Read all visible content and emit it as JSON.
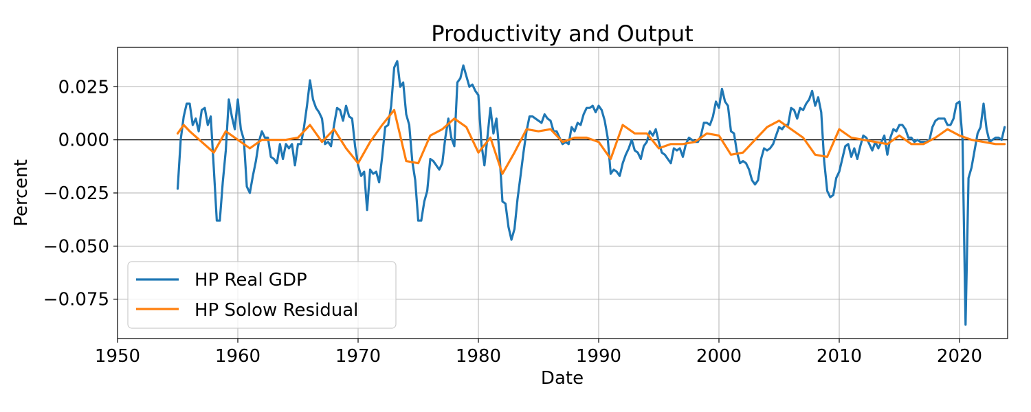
{
  "chart_data": {
    "type": "line",
    "title": "Productivity and Output",
    "xlabel": "Date",
    "ylabel": "Percent",
    "xlim": [
      1950,
      2024
    ],
    "ylim": [
      -0.0935,
      0.0435
    ],
    "x_ticks": [
      1950,
      1960,
      1970,
      1980,
      1990,
      2000,
      2010,
      2020
    ],
    "x_tick_labels": [
      "1950",
      "1960",
      "1970",
      "1980",
      "1990",
      "2000",
      "2010",
      "2020"
    ],
    "y_ticks": [
      0.025,
      0.0,
      -0.025,
      -0.05,
      -0.075
    ],
    "y_tick_labels": [
      "0.025",
      "0.000",
      "−0.025",
      "−0.050",
      "−0.075"
    ],
    "grid": true,
    "zero_line": true,
    "legend_position": "lower-left",
    "colors": {
      "hp_real_gdp": "#1f77b4",
      "hp_solow_residual": "#ff7f0e",
      "grid": "#b0b0b0"
    },
    "series": [
      {
        "name": "HP Real GDP",
        "color": "#1f77b4",
        "x": [
          1955.0,
          1955.25,
          1955.5,
          1955.75,
          1956.0,
          1956.25,
          1956.5,
          1956.75,
          1957.0,
          1957.25,
          1957.5,
          1957.75,
          1958.0,
          1958.25,
          1958.5,
          1958.75,
          1959.0,
          1959.25,
          1959.5,
          1959.75,
          1960.0,
          1960.25,
          1960.5,
          1960.75,
          1961.0,
          1961.25,
          1961.5,
          1961.75,
          1962.0,
          1962.25,
          1962.5,
          1962.75,
          1963.0,
          1963.25,
          1963.5,
          1963.75,
          1964.0,
          1964.25,
          1964.5,
          1964.75,
          1965.0,
          1965.25,
          1965.5,
          1965.75,
          1966.0,
          1966.25,
          1966.5,
          1966.75,
          1967.0,
          1967.25,
          1967.5,
          1967.75,
          1968.0,
          1968.25,
          1968.5,
          1968.75,
          1969.0,
          1969.25,
          1969.5,
          1969.75,
          1970.0,
          1970.25,
          1970.5,
          1970.75,
          1971.0,
          1971.25,
          1971.5,
          1971.75,
          1972.0,
          1972.25,
          1972.5,
          1972.75,
          1973.0,
          1973.25,
          1973.5,
          1973.75,
          1974.0,
          1974.25,
          1974.5,
          1974.75,
          1975.0,
          1975.25,
          1975.5,
          1975.75,
          1976.0,
          1976.25,
          1976.5,
          1976.75,
          1977.0,
          1977.25,
          1977.5,
          1977.75,
          1978.0,
          1978.25,
          1978.5,
          1978.75,
          1979.0,
          1979.25,
          1979.5,
          1979.75,
          1980.0,
          1980.25,
          1980.5,
          1980.75,
          1981.0,
          1981.25,
          1981.5,
          1981.75,
          1982.0,
          1982.25,
          1982.5,
          1982.75,
          1983.0,
          1983.25,
          1983.5,
          1983.75,
          1984.0,
          1984.25,
          1984.5,
          1984.75,
          1985.0,
          1985.25,
          1985.5,
          1985.75,
          1986.0,
          1986.25,
          1986.5,
          1986.75,
          1987.0,
          1987.25,
          1987.5,
          1987.75,
          1988.0,
          1988.25,
          1988.5,
          1988.75,
          1989.0,
          1989.25,
          1989.5,
          1989.75,
          1990.0,
          1990.25,
          1990.5,
          1990.75,
          1991.0,
          1991.25,
          1991.5,
          1991.75,
          1992.0,
          1992.25,
          1992.5,
          1992.75,
          1993.0,
          1993.25,
          1993.5,
          1993.75,
          1994.0,
          1994.25,
          1994.5,
          1994.75,
          1995.0,
          1995.25,
          1995.5,
          1995.75,
          1996.0,
          1996.25,
          1996.5,
          1996.75,
          1997.0,
          1997.25,
          1997.5,
          1997.75,
          1998.0,
          1998.25,
          1998.5,
          1998.75,
          1999.0,
          1999.25,
          1999.5,
          1999.75,
          2000.0,
          2000.25,
          2000.5,
          2000.75,
          2001.0,
          2001.25,
          2001.5,
          2001.75,
          2002.0,
          2002.25,
          2002.5,
          2002.75,
          2003.0,
          2003.25,
          2003.5,
          2003.75,
          2004.0,
          2004.25,
          2004.5,
          2004.75,
          2005.0,
          2005.25,
          2005.5,
          2005.75,
          2006.0,
          2006.25,
          2006.5,
          2006.75,
          2007.0,
          2007.25,
          2007.5,
          2007.75,
          2008.0,
          2008.25,
          2008.5,
          2008.75,
          2009.0,
          2009.25,
          2009.5,
          2009.75,
          2010.0,
          2010.25,
          2010.5,
          2010.75,
          2011.0,
          2011.25,
          2011.5,
          2011.75,
          2012.0,
          2012.25,
          2012.5,
          2012.75,
          2013.0,
          2013.25,
          2013.5,
          2013.75,
          2014.0,
          2014.25,
          2014.5,
          2014.75,
          2015.0,
          2015.25,
          2015.5,
          2015.75,
          2016.0,
          2016.25,
          2016.5,
          2016.75,
          2017.0,
          2017.25,
          2017.5,
          2017.75,
          2018.0,
          2018.25,
          2018.5,
          2018.75,
          2019.0,
          2019.25,
          2019.5,
          2019.75,
          2020.0,
          2020.25,
          2020.5,
          2020.75,
          2021.0,
          2021.25,
          2021.5,
          2021.75,
          2022.0,
          2022.25,
          2022.5,
          2022.75,
          2023.0,
          2023.25,
          2023.5,
          2023.75
        ],
        "y": [
          -0.023,
          0.0,
          0.011,
          0.017,
          0.017,
          0.007,
          0.01,
          0.004,
          0.014,
          0.015,
          0.007,
          0.011,
          -0.013,
          -0.038,
          -0.038,
          -0.02,
          -0.005,
          0.019,
          0.011,
          0.005,
          0.019,
          0.005,
          0.0,
          -0.022,
          -0.025,
          -0.017,
          -0.01,
          -0.001,
          0.004,
          0.001,
          0.001,
          -0.008,
          -0.009,
          -0.011,
          -0.002,
          -0.009,
          -0.002,
          -0.004,
          -0.002,
          -0.012,
          -0.002,
          -0.002,
          0.006,
          0.016,
          0.028,
          0.019,
          0.015,
          0.013,
          0.01,
          -0.002,
          -0.001,
          -0.003,
          0.007,
          0.015,
          0.014,
          0.009,
          0.016,
          0.011,
          0.01,
          -0.003,
          -0.012,
          -0.017,
          -0.015,
          -0.033,
          -0.014,
          -0.016,
          -0.015,
          -0.02,
          -0.008,
          0.006,
          0.007,
          0.016,
          0.034,
          0.037,
          0.025,
          0.027,
          0.012,
          0.007,
          -0.01,
          -0.019,
          -0.038,
          -0.038,
          -0.029,
          -0.024,
          -0.009,
          -0.01,
          -0.012,
          -0.014,
          -0.011,
          0.001,
          0.01,
          0.001,
          -0.003,
          0.027,
          0.029,
          0.035,
          0.03,
          0.025,
          0.026,
          0.023,
          0.021,
          -0.002,
          -0.012,
          0.001,
          0.015,
          0.003,
          0.01,
          -0.006,
          -0.029,
          -0.03,
          -0.041,
          -0.047,
          -0.042,
          -0.028,
          -0.017,
          -0.006,
          0.004,
          0.011,
          0.011,
          0.01,
          0.009,
          0.008,
          0.012,
          0.01,
          0.009,
          0.004,
          0.004,
          0.001,
          -0.002,
          -0.001,
          -0.002,
          0.006,
          0.004,
          0.008,
          0.007,
          0.012,
          0.015,
          0.015,
          0.016,
          0.013,
          0.016,
          0.014,
          0.009,
          0.001,
          -0.016,
          -0.014,
          -0.015,
          -0.017,
          -0.011,
          -0.007,
          -0.004,
          0.0,
          -0.005,
          -0.006,
          -0.009,
          -0.003,
          -0.001,
          0.004,
          0.002,
          0.005,
          -0.001,
          -0.006,
          -0.007,
          -0.009,
          -0.011,
          -0.004,
          -0.005,
          -0.004,
          -0.008,
          -0.002,
          0.001,
          0.0,
          -0.001,
          -0.001,
          0.002,
          0.008,
          0.008,
          0.007,
          0.011,
          0.018,
          0.015,
          0.024,
          0.018,
          0.016,
          0.004,
          0.003,
          -0.006,
          -0.011,
          -0.01,
          -0.011,
          -0.014,
          -0.019,
          -0.021,
          -0.019,
          -0.009,
          -0.004,
          -0.005,
          -0.004,
          -0.002,
          0.002,
          0.006,
          0.005,
          0.007,
          0.007,
          0.015,
          0.014,
          0.01,
          0.015,
          0.014,
          0.017,
          0.019,
          0.023,
          0.016,
          0.02,
          0.013,
          -0.01,
          -0.024,
          -0.027,
          -0.026,
          -0.018,
          -0.015,
          -0.009,
          -0.003,
          -0.002,
          -0.008,
          -0.004,
          -0.009,
          -0.003,
          0.002,
          0.001,
          -0.002,
          -0.005,
          -0.001,
          -0.004,
          -0.001,
          0.002,
          -0.007,
          0.001,
          0.005,
          0.004,
          0.007,
          0.007,
          0.005,
          0.001,
          0.001,
          -0.001,
          0.0,
          -0.001,
          -0.001,
          -0.001,
          0.0,
          0.006,
          0.009,
          0.01,
          0.01,
          0.01,
          0.007,
          0.007,
          0.01,
          0.017,
          0.018,
          0.0,
          -0.087,
          -0.018,
          -0.013,
          -0.005,
          0.003,
          0.006,
          0.017,
          0.005,
          -0.001,
          0.0,
          0.001,
          0.001,
          0.0,
          0.006
        ]
      },
      {
        "name": "HP Solow Residual",
        "color": "#ff7f0e",
        "x": [
          1955,
          1955.5,
          1956,
          1957,
          1958,
          1959,
          1960,
          1961,
          1962,
          1963,
          1964,
          1965,
          1966,
          1967,
          1968,
          1969,
          1970,
          1971,
          1972,
          1973,
          1974,
          1975,
          1976,
          1977,
          1978,
          1979,
          1980,
          1981,
          1982,
          1983,
          1984,
          1985,
          1986,
          1987,
          1988,
          1989,
          1990,
          1991,
          1992,
          1993,
          1994,
          1995,
          1996,
          1997,
          1998,
          1999,
          2000,
          2001,
          2002,
          2003,
          2004,
          2005,
          2006,
          2007,
          2008,
          2009,
          2010,
          2011,
          2012,
          2013,
          2014,
          2015,
          2016,
          2017,
          2018,
          2019,
          2020,
          2021,
          2022,
          2023,
          2023.75
        ],
        "y": [
          0.003,
          0.007,
          0.004,
          -0.001,
          -0.006,
          0.004,
          0.0,
          -0.004,
          0.0,
          0.0,
          0.0,
          0.001,
          0.007,
          -0.001,
          0.005,
          -0.004,
          -0.011,
          -0.001,
          0.007,
          0.014,
          -0.01,
          -0.011,
          0.002,
          0.005,
          0.01,
          0.006,
          -0.006,
          0.001,
          -0.016,
          -0.006,
          0.005,
          0.004,
          0.005,
          -0.001,
          0.001,
          0.001,
          -0.001,
          -0.009,
          0.007,
          0.003,
          0.003,
          -0.004,
          -0.002,
          -0.002,
          -0.001,
          0.003,
          0.002,
          -0.007,
          -0.006,
          0.0,
          0.006,
          0.009,
          0.005,
          0.001,
          -0.007,
          -0.008,
          0.005,
          0.001,
          0.0,
          -0.001,
          -0.002,
          0.002,
          -0.002,
          -0.002,
          0.001,
          0.005,
          0.002,
          0.0,
          -0.001,
          -0.002,
          -0.002
        ]
      }
    ]
  }
}
